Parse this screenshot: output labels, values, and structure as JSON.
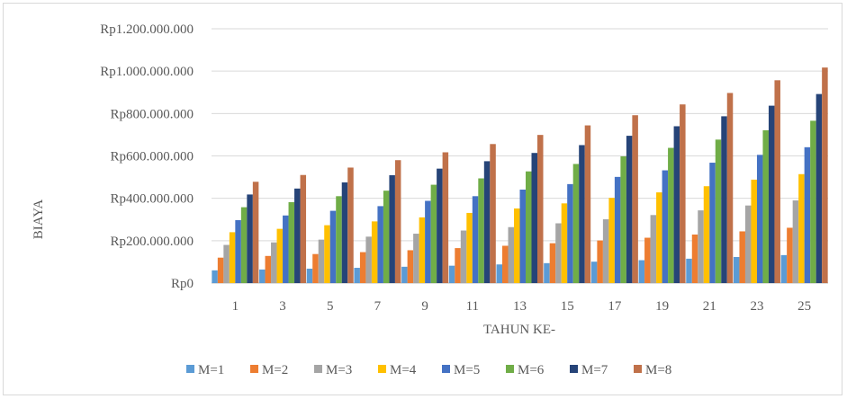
{
  "chart_data": {
    "type": "bar",
    "xlabel": "TAHUN KE-",
    "ylabel": "BIAYA",
    "ylim": [
      0,
      1200000000
    ],
    "yticks": [
      0,
      200000000,
      400000000,
      600000000,
      800000000,
      1000000000,
      1200000000
    ],
    "ytick_labels": [
      "Rp0",
      "Rp200.000.000",
      "Rp400.000.000",
      "Rp600.000.000",
      "Rp800.000.000",
      "Rp1.000.000.000",
      "Rp1.200.000.000"
    ],
    "categories": [
      "1",
      "3",
      "5",
      "7",
      "9",
      "11",
      "13",
      "15",
      "17",
      "19",
      "21",
      "23",
      "25"
    ],
    "grid": "horizontal",
    "legend_position": "bottom",
    "series": [
      {
        "name": "M=1",
        "color": "#5b9bd5",
        "values": [
          60000000,
          64000000,
          68000000,
          72000000,
          77000000,
          82000000,
          88000000,
          94000000,
          101000000,
          108000000,
          115000000,
          123000000,
          132000000
        ]
      },
      {
        "name": "M=2",
        "color": "#ed7d31",
        "values": [
          120000000,
          128000000,
          137000000,
          146000000,
          155000000,
          165000000,
          176000000,
          188000000,
          201000000,
          214000000,
          229000000,
          244000000,
          261000000
        ]
      },
      {
        "name": "M=3",
        "color": "#a5a5a5",
        "values": [
          180000000,
          192000000,
          205000000,
          219000000,
          233000000,
          248000000,
          264000000,
          282000000,
          301000000,
          321000000,
          343000000,
          366000000,
          390000000
        ]
      },
      {
        "name": "M=4",
        "color": "#ffc000",
        "values": [
          240000000,
          256000000,
          273000000,
          291000000,
          310000000,
          331000000,
          352000000,
          376000000,
          402000000,
          428000000,
          457000000,
          488000000,
          514000000
        ]
      },
      {
        "name": "M=5",
        "color": "#4472c4",
        "values": [
          297000000,
          319000000,
          341000000,
          363000000,
          388000000,
          410000000,
          441000000,
          467000000,
          501000000,
          532000000,
          568000000,
          605000000,
          641000000
        ]
      },
      {
        "name": "M=6",
        "color": "#70ad47",
        "values": [
          358000000,
          382000000,
          410000000,
          436000000,
          464000000,
          494000000,
          527000000,
          562000000,
          598000000,
          638000000,
          677000000,
          721000000,
          766000000
        ]
      },
      {
        "name": "M=7",
        "color": "#264478",
        "values": [
          418000000,
          446000000,
          475000000,
          509000000,
          540000000,
          575000000,
          614000000,
          651000000,
          695000000,
          740000000,
          787000000,
          837000000,
          892000000
        ]
      },
      {
        "name": "M=8",
        "color": "#c0714a",
        "values": [
          478000000,
          510000000,
          545000000,
          580000000,
          617000000,
          656000000,
          699000000,
          744000000,
          792000000,
          843000000,
          897000000,
          957000000,
          1017000000
        ]
      }
    ]
  }
}
